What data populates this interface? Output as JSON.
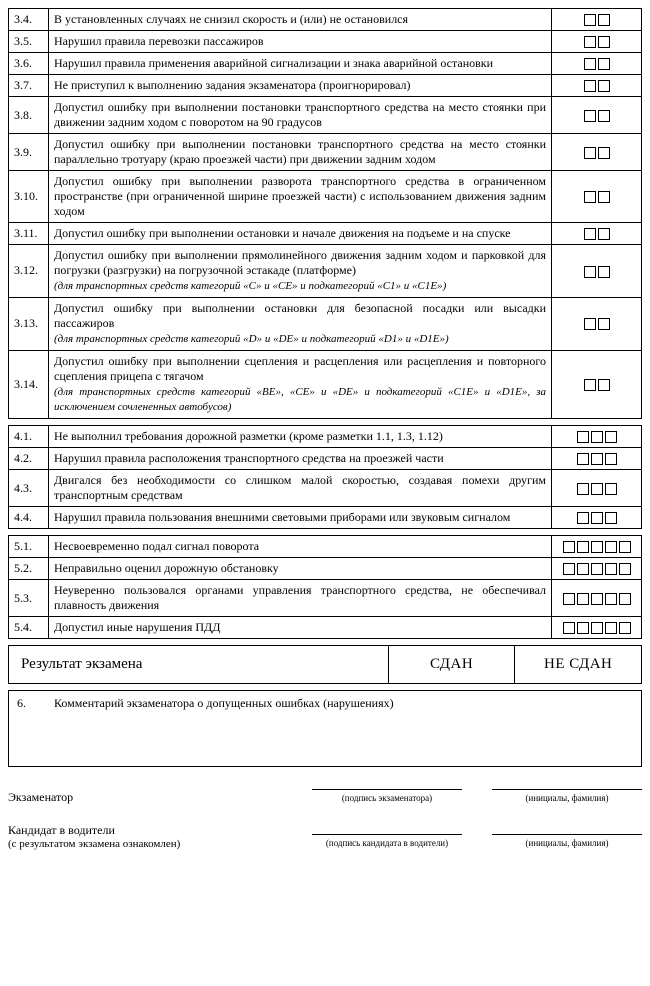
{
  "groups": [
    {
      "boxes": 2,
      "rows": [
        {
          "num": "3.4.",
          "text": "В установленных случаях не снизил скорость и (или) не остановился"
        },
        {
          "num": "3.5.",
          "text": "Нарушил правила перевозки пассажиров"
        },
        {
          "num": "3.6.",
          "text": "Нарушил правила применения аварийной сигнализации и знака аварийной остановки"
        },
        {
          "num": "3.7.",
          "text": "Не приступил к выполнению задания экзаменатора (проигнорировал)"
        },
        {
          "num": "3.8.",
          "text": "Допустил ошибку при выполнении постановки транспортного средства на место стоянки при движении задним ходом с поворотом на 90 градусов"
        },
        {
          "num": "3.9.",
          "text": "Допустил ошибку при выполнении постановки транспортного средства на место стоянки параллельно тротуару (краю проезжей части) при движении задним ходом"
        },
        {
          "num": "3.10.",
          "text": "Допустил ошибку при выполнении разворота транспортного средства в ограниченном пространстве (при ограниченной ширине проезжей части) с использованием движения задним ходом"
        },
        {
          "num": "3.11.",
          "text": "Допустил ошибку при выполнении остановки и начале движения на подъеме и на спуске"
        },
        {
          "num": "3.12.",
          "text": "Допустил ошибку при выполнении прямолинейного движения задним ходом и парковкой для погрузки (разгрузки) на погрузочной эстакаде (платформе)",
          "note": "(для транспортных средств категорий «C» и «CE» и подкатегорий «C1» и «C1E»)"
        },
        {
          "num": "3.13.",
          "text": "Допустил ошибку при выполнении остановки для безопасной посадки или высадки пассажиров",
          "note": "(для транспортных средств категорий «D» и «DE» и подкатегорий «D1» и «D1E»)"
        },
        {
          "num": "3.14.",
          "text": "Допустил ошибку при выполнении сцепления и расцепления или расцепления и повторного сцепления прицепа с тягачом",
          "note": "(для транспортных средств категорий «BE», «CE» и «DE» и подкатегорий «C1E» и «D1E», за исключением сочлененных автобусов)"
        }
      ]
    },
    {
      "boxes": 3,
      "rows": [
        {
          "num": "4.1.",
          "text": "Не выполнил требования дорожной разметки (кроме разметки 1.1, 1.3, 1.12)"
        },
        {
          "num": "4.2.",
          "text": "Нарушил правила расположения транспортного средства на проезжей части"
        },
        {
          "num": "4.3.",
          "text": "Двигался без необходимости со слишком малой скоростью, создавая помехи другим транспортным средствам"
        },
        {
          "num": "4.4.",
          "text": "Нарушил правила пользования внешними световыми приборами или звуковым сигналом"
        }
      ]
    },
    {
      "boxes": 5,
      "rows": [
        {
          "num": "5.1.",
          "text": "Несвоевременно подал сигнал поворота"
        },
        {
          "num": "5.2.",
          "text": "Неправильно оценил дорожную обстановку"
        },
        {
          "num": "5.3.",
          "text": "Неуверенно пользовался органами управления транспортного средства, не обеспечивал плавность движения"
        },
        {
          "num": "5.4.",
          "text": "Допустил иные нарушения ПДД"
        }
      ]
    }
  ],
  "result": {
    "label": "Результат экзамена",
    "pass": "СДАН",
    "fail": "НЕ СДАН"
  },
  "comment": {
    "num": "6.",
    "text": "Комментарий экзаменатора о допущенных ошибках (нарушениях)"
  },
  "signatures": {
    "examiner_label": "Экзаменатор",
    "candidate_label": "Кандидат в водители",
    "candidate_sub": "(с результатом экзамена ознакомлен)",
    "sig_examiner_caption": "(подпись экзаменатора)",
    "sig_candidate_caption": "(подпись кандидата в водители)",
    "initials_caption": "(инициалы, фамилия)"
  }
}
